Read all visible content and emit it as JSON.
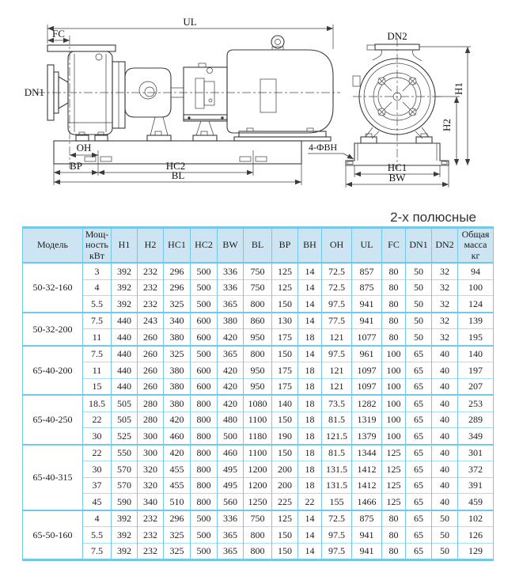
{
  "section_title": "2-х полюсные",
  "diagram": {
    "side_view": {
      "ul": "UL",
      "fc": "FC",
      "dn1": "DN1",
      "oh": "OH",
      "bp": "BP",
      "hc2": "HC2",
      "bl": "BL",
      "holes_note": "4-ФВН"
    },
    "end_view": {
      "dn2": "DN2",
      "h1": "H1",
      "h2": "H2",
      "hc1": "HC1",
      "bw": "BW"
    }
  },
  "table": {
    "headers": [
      "Модель",
      "Мощ-\nность\nкВт",
      "H1",
      "H2",
      "HC1",
      "HC2",
      "BW",
      "BL",
      "BP",
      "BH",
      "OH",
      "UL",
      "FC",
      "DN1",
      "DN2",
      "Общая\nмасса\nкг"
    ],
    "groups": [
      {
        "model": "50-32-160",
        "rows": [
          [
            "3",
            "392",
            "232",
            "296",
            "500",
            "336",
            "750",
            "125",
            "14",
            "72.5",
            "857",
            "80",
            "50",
            "32",
            "94"
          ],
          [
            "4",
            "392",
            "232",
            "296",
            "500",
            "336",
            "750",
            "125",
            "14",
            "72.5",
            "875",
            "80",
            "50",
            "32",
            "100"
          ],
          [
            "5.5",
            "392",
            "232",
            "325",
            "500",
            "365",
            "800",
            "150",
            "14",
            "97.5",
            "941",
            "80",
            "50",
            "32",
            "124"
          ]
        ]
      },
      {
        "model": "50-32-200",
        "rows": [
          [
            "7.5",
            "440",
            "243",
            "340",
            "600",
            "380",
            "860",
            "130",
            "14",
            "77.5",
            "941",
            "80",
            "50",
            "32",
            "139"
          ],
          [
            "11",
            "440",
            "260",
            "380",
            "600",
            "420",
            "950",
            "175",
            "18",
            "121",
            "1077",
            "80",
            "50",
            "32",
            "195"
          ]
        ]
      },
      {
        "model": "65-40-200",
        "rows": [
          [
            "7.5",
            "440",
            "260",
            "325",
            "500",
            "365",
            "800",
            "150",
            "14",
            "97.5",
            "961",
            "100",
            "65",
            "40",
            "140"
          ],
          [
            "11",
            "440",
            "260",
            "380",
            "600",
            "420",
            "950",
            "175",
            "18",
            "121",
            "1097",
            "100",
            "65",
            "40",
            "197"
          ],
          [
            "15",
            "440",
            "260",
            "380",
            "600",
            "420",
            "950",
            "175",
            "18",
            "121",
            "1097",
            "100",
            "65",
            "40",
            "207"
          ]
        ]
      },
      {
        "model": "65-40-250",
        "rows": [
          [
            "18.5",
            "505",
            "280",
            "380",
            "800",
            "420",
            "1080",
            "140",
            "18",
            "73.5",
            "1282",
            "100",
            "65",
            "40",
            "253"
          ],
          [
            "22",
            "505",
            "280",
            "420",
            "800",
            "480",
            "1100",
            "150",
            "18",
            "81.5",
            "1319",
            "100",
            "65",
            "40",
            "289"
          ],
          [
            "30",
            "525",
            "300",
            "460",
            "800",
            "500",
            "1180",
            "190",
            "18",
            "121.5",
            "1379",
            "100",
            "65",
            "40",
            "349"
          ]
        ]
      },
      {
        "model": "65-40-315",
        "rows": [
          [
            "22",
            "550",
            "300",
            "420",
            "800",
            "460",
            "1100",
            "150",
            "18",
            "81.5",
            "1344",
            "125",
            "65",
            "40",
            "301"
          ],
          [
            "30",
            "570",
            "320",
            "455",
            "800",
            "495",
            "1200",
            "200",
            "18",
            "131.5",
            "1412",
            "125",
            "65",
            "40",
            "372"
          ],
          [
            "37",
            "570",
            "320",
            "455",
            "800",
            "495",
            "1200",
            "200",
            "18",
            "131.5",
            "1412",
            "125",
            "65",
            "40",
            "391"
          ],
          [
            "45",
            "590",
            "340",
            "510",
            "800",
            "560",
            "1250",
            "225",
            "22",
            "155",
            "1466",
            "125",
            "65",
            "40",
            "459"
          ]
        ]
      },
      {
        "model": "65-50-160",
        "rows": [
          [
            "4",
            "392",
            "232",
            "296",
            "500",
            "336",
            "750",
            "125",
            "14",
            "72.5",
            "875",
            "80",
            "65",
            "50",
            "102"
          ],
          [
            "5.5",
            "392",
            "232",
            "325",
            "500",
            "365",
            "800",
            "150",
            "14",
            "97.5",
            "941",
            "80",
            "65",
            "50",
            "126"
          ],
          [
            "7.5",
            "392",
            "232",
            "325",
            "500",
            "365",
            "800",
            "150",
            "14",
            "97.5",
            "941",
            "80",
            "65",
            "50",
            "129"
          ]
        ]
      }
    ]
  }
}
